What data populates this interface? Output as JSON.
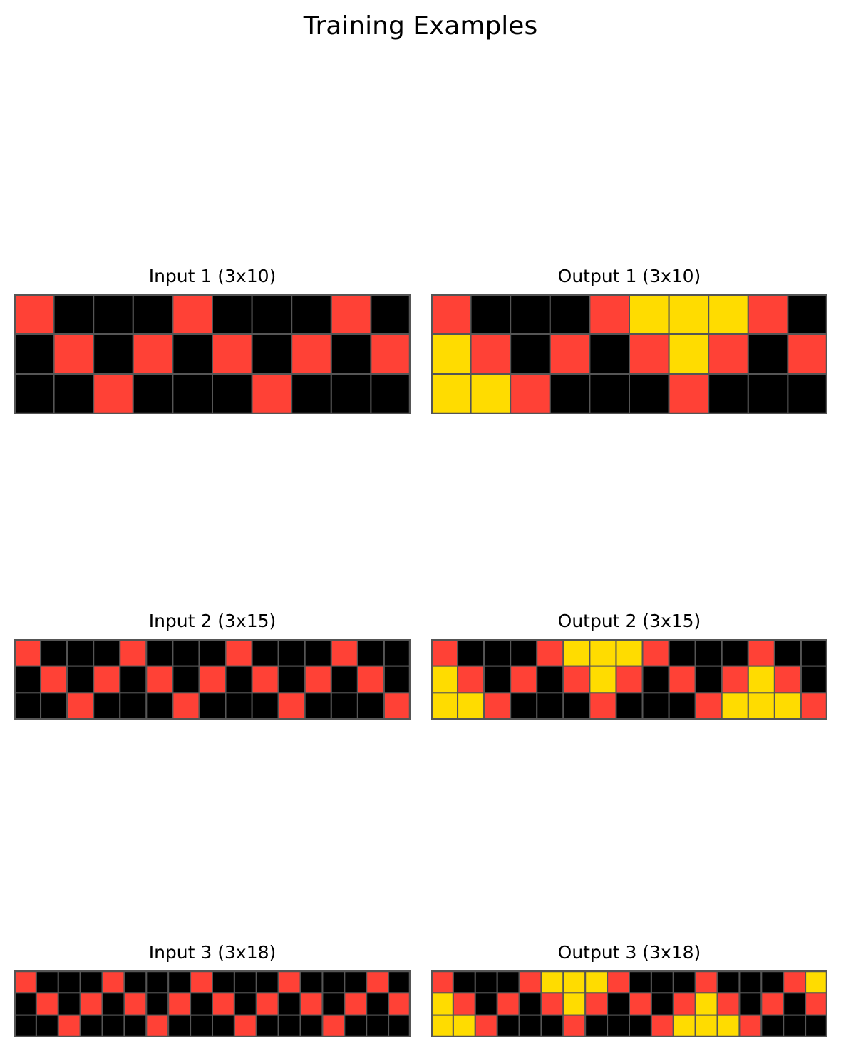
{
  "title": "Training Examples",
  "colors": {
    "0": "#000000",
    "2": "#ff4136",
    "4": "#ffdc00",
    "gridline": "#555555"
  },
  "examples": [
    {
      "input": {
        "label": "Input 1 (3x10)",
        "rows": [
          [
            2,
            0,
            0,
            0,
            2,
            0,
            0,
            0,
            2,
            0
          ],
          [
            0,
            2,
            0,
            2,
            0,
            2,
            0,
            2,
            0,
            2
          ],
          [
            0,
            0,
            2,
            0,
            0,
            0,
            2,
            0,
            0,
            0
          ]
        ]
      },
      "output": {
        "label": "Output 1 (3x10)",
        "rows": [
          [
            2,
            0,
            0,
            0,
            2,
            4,
            4,
            4,
            2,
            0
          ],
          [
            4,
            2,
            0,
            2,
            0,
            2,
            4,
            2,
            0,
            2
          ],
          [
            4,
            4,
            2,
            0,
            0,
            0,
            2,
            0,
            0,
            0
          ]
        ]
      }
    },
    {
      "input": {
        "label": "Input 2 (3x15)",
        "rows": [
          [
            2,
            0,
            0,
            0,
            2,
            0,
            0,
            0,
            2,
            0,
            0,
            0,
            2,
            0,
            0
          ],
          [
            0,
            2,
            0,
            2,
            0,
            2,
            0,
            2,
            0,
            2,
            0,
            2,
            0,
            2,
            0
          ],
          [
            0,
            0,
            2,
            0,
            0,
            0,
            2,
            0,
            0,
            0,
            2,
            0,
            0,
            0,
            2
          ]
        ]
      },
      "output": {
        "label": "Output 2 (3x15)",
        "rows": [
          [
            2,
            0,
            0,
            0,
            2,
            4,
            4,
            4,
            2,
            0,
            0,
            0,
            2,
            0,
            0
          ],
          [
            4,
            2,
            0,
            2,
            0,
            2,
            4,
            2,
            0,
            2,
            0,
            2,
            4,
            2,
            0
          ],
          [
            4,
            4,
            2,
            0,
            0,
            0,
            2,
            0,
            0,
            0,
            2,
            4,
            4,
            4,
            2
          ]
        ]
      }
    },
    {
      "input": {
        "label": "Input 3 (3x18)",
        "rows": [
          [
            2,
            0,
            0,
            0,
            2,
            0,
            0,
            0,
            2,
            0,
            0,
            0,
            2,
            0,
            0,
            0,
            2,
            0
          ],
          [
            0,
            2,
            0,
            2,
            0,
            2,
            0,
            2,
            0,
            2,
            0,
            2,
            0,
            2,
            0,
            2,
            0,
            2
          ],
          [
            0,
            0,
            2,
            0,
            0,
            0,
            2,
            0,
            0,
            0,
            2,
            0,
            0,
            0,
            2,
            0,
            0,
            0
          ]
        ]
      },
      "output": {
        "label": "Output 3 (3x18)",
        "rows": [
          [
            2,
            0,
            0,
            0,
            2,
            4,
            4,
            4,
            2,
            0,
            0,
            0,
            2,
            0,
            0,
            0,
            2,
            4
          ],
          [
            4,
            2,
            0,
            2,
            0,
            2,
            4,
            2,
            0,
            2,
            0,
            2,
            4,
            2,
            0,
            2,
            0,
            2
          ],
          [
            4,
            4,
            2,
            0,
            0,
            0,
            2,
            0,
            0,
            0,
            2,
            4,
            4,
            4,
            2,
            0,
            0,
            0
          ]
        ]
      }
    }
  ]
}
